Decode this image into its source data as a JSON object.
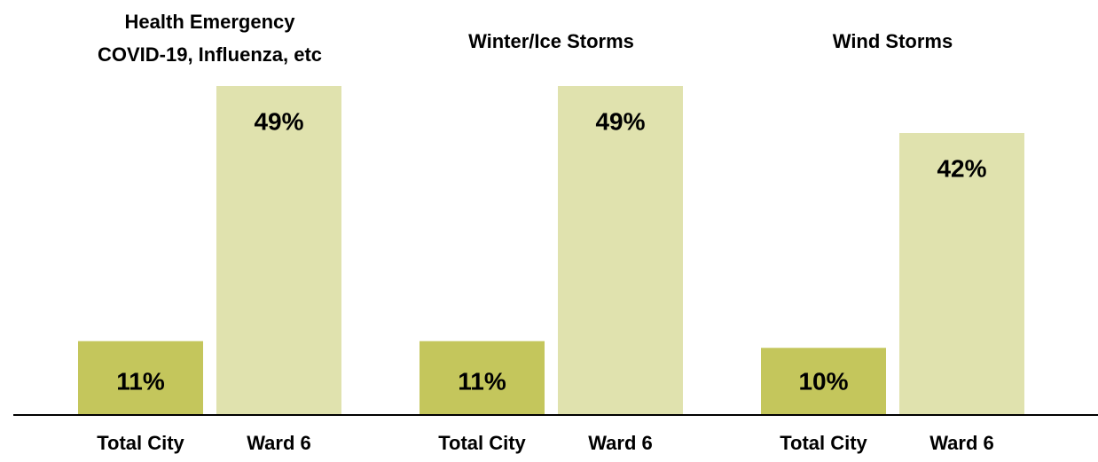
{
  "chart_data": {
    "type": "bar",
    "categories": [
      "Health Emergency\nCOVID-19, Influenza, etc",
      "Winter/Ice Storms",
      "Wind Storms"
    ],
    "series": [
      {
        "name": "Total City",
        "color": "#c4c65c",
        "values": [
          11,
          11,
          10
        ],
        "value_labels": [
          "11%",
          "11%",
          "10%"
        ]
      },
      {
        "name": "Ward 6",
        "color": "#e0e2ae",
        "values": [
          49,
          49,
          42
        ],
        "value_labels": [
          "49%",
          "49%",
          "42%"
        ]
      }
    ]
  }
}
